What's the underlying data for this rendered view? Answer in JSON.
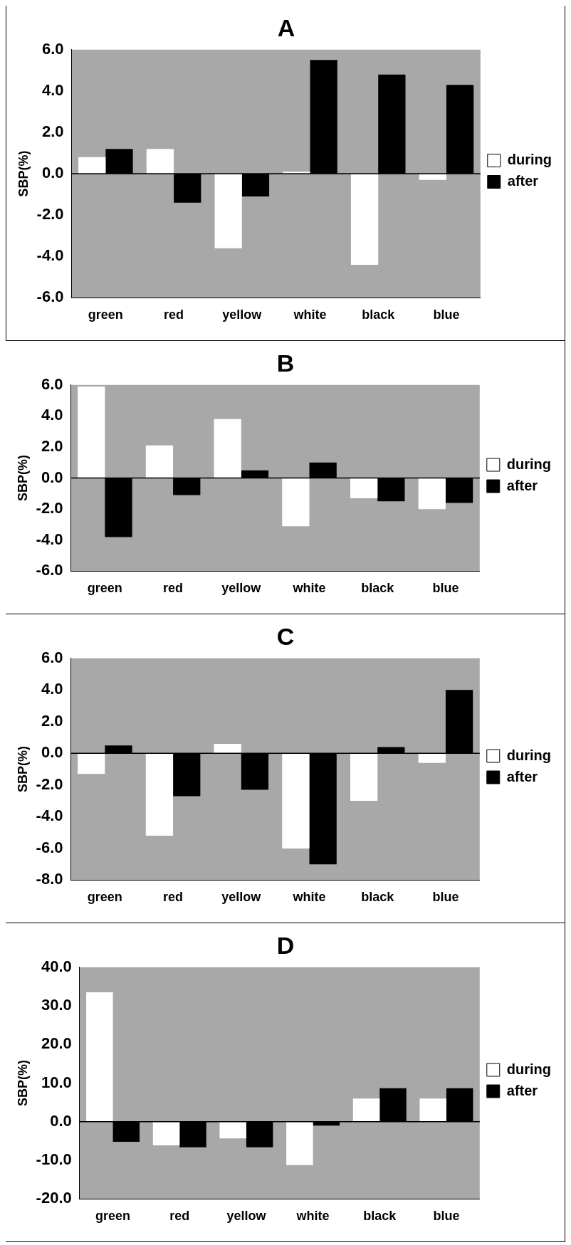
{
  "chart_data": [
    {
      "type": "bar",
      "title": "A",
      "ylabel": "SBP(%)",
      "categories": [
        "green",
        "red",
        "yellow",
        "white",
        "black",
        "blue"
      ],
      "series": [
        {
          "name": "during",
          "color": "#ffffff",
          "values": [
            0.8,
            1.2,
            -3.6,
            0.1,
            -4.4,
            -0.3
          ]
        },
        {
          "name": "after",
          "color": "#000000",
          "values": [
            1.2,
            -1.4,
            -1.1,
            5.5,
            4.8,
            4.3
          ]
        }
      ],
      "ylim": [
        -6,
        6
      ],
      "yticks": [
        {
          "value": 6,
          "label": "6.0"
        },
        {
          "value": 4,
          "label": "4.0"
        },
        {
          "value": 2,
          "label": "2.0"
        },
        {
          "value": 0,
          "label": "0.0"
        },
        {
          "value": -2,
          "label": "-2.0"
        },
        {
          "value": -4,
          "label": "-4.0"
        },
        {
          "value": -6,
          "label": "-6.0"
        }
      ],
      "legend": "right",
      "grid": false,
      "ref_lines": [
        {
          "axis": "y",
          "value": 0,
          "color": "#000000"
        }
      ]
    },
    {
      "type": "bar",
      "title": "B",
      "ylabel": "SBP(%)",
      "categories": [
        "green",
        "red",
        "yellow",
        "white",
        "black",
        "blue"
      ],
      "series": [
        {
          "name": "during",
          "color": "#ffffff",
          "values": [
            5.9,
            2.1,
            3.8,
            -3.1,
            -1.3,
            -2.0
          ]
        },
        {
          "name": "after",
          "color": "#000000",
          "values": [
            -3.8,
            -1.1,
            0.5,
            1.0,
            -1.5,
            -1.6
          ]
        }
      ],
      "ylim": [
        -6,
        6
      ],
      "yticks": [
        {
          "value": 6,
          "label": "6.0"
        },
        {
          "value": 4,
          "label": "4.0"
        },
        {
          "value": 2,
          "label": "2.0"
        },
        {
          "value": 0,
          "label": "0.0"
        },
        {
          "value": -2,
          "label": "-2.0"
        },
        {
          "value": -4,
          "label": "-4.0"
        },
        {
          "value": -6,
          "label": "-6.0"
        }
      ],
      "legend": "right",
      "grid": false,
      "ref_lines": [
        {
          "axis": "y",
          "value": 0,
          "color": "#000000"
        }
      ]
    },
    {
      "type": "bar",
      "title": "C",
      "ylabel": "SBP(%)",
      "categories": [
        "green",
        "red",
        "yellow",
        "white",
        "black",
        "blue"
      ],
      "series": [
        {
          "name": "during",
          "color": "#ffffff",
          "values": [
            -1.3,
            -5.2,
            0.6,
            -6.0,
            -3.0,
            -0.6
          ]
        },
        {
          "name": "after",
          "color": "#000000",
          "values": [
            0.5,
            -2.7,
            -2.3,
            -7.0,
            0.4,
            4.0
          ]
        }
      ],
      "ylim": [
        -8,
        6
      ],
      "yticks": [
        {
          "value": 6,
          "label": "6.0"
        },
        {
          "value": 4,
          "label": "4.0"
        },
        {
          "value": 2,
          "label": "2.0"
        },
        {
          "value": 0,
          "label": "0.0"
        },
        {
          "value": -2,
          "label": "-2.0"
        },
        {
          "value": -4,
          "label": "-4.0"
        },
        {
          "value": -6,
          "label": "-6.0"
        },
        {
          "value": -8,
          "label": "-8.0"
        }
      ],
      "legend": "right",
      "grid": false,
      "ref_lines": [
        {
          "axis": "y",
          "value": 0,
          "color": "#000000"
        }
      ]
    },
    {
      "type": "bar",
      "title": "D",
      "ylabel": "SBP(%)",
      "categories": [
        "green",
        "red",
        "yellow",
        "white",
        "black",
        "blue"
      ],
      "series": [
        {
          "name": "during",
          "color": "#ffffff",
          "values": [
            33.5,
            -6.1,
            -4.3,
            -11.2,
            6.0,
            6.0
          ]
        },
        {
          "name": "after",
          "color": "#000000",
          "values": [
            -5.2,
            -6.6,
            -6.6,
            -1.0,
            8.7,
            8.7
          ]
        }
      ],
      "ylim": [
        -20,
        40
      ],
      "yticks": [
        {
          "value": 40,
          "label": "40.0"
        },
        {
          "value": 30,
          "label": "30.0"
        },
        {
          "value": 20,
          "label": "20.0"
        },
        {
          "value": 10,
          "label": "10.0"
        },
        {
          "value": 0,
          "label": "0.0"
        },
        {
          "value": -10,
          "label": "-10.0"
        },
        {
          "value": -20,
          "label": "-20.0"
        }
      ],
      "legend": "right",
      "grid": false,
      "ref_lines": [
        {
          "axis": "y",
          "value": 0,
          "color": "#000000"
        }
      ]
    }
  ]
}
